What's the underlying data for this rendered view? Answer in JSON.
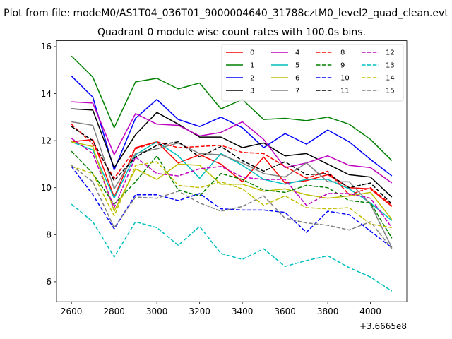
{
  "chart_data": {
    "type": "line",
    "suptitle": "Plot from file: modeM0/AS1T04_036T01_9000004640_31788cztM0_level2_quad_clean.evt",
    "title": "Quadrant 0 module wise count rates with 100.0s bins.",
    "xlabel": "",
    "ylabel": "",
    "x_offset_label": "+3.6665e8",
    "x": [
      2600,
      2700,
      2800,
      2900,
      3000,
      3100,
      3200,
      3300,
      3400,
      3500,
      3600,
      3700,
      3800,
      3900,
      4000,
      4100
    ],
    "xlim": [
      2530,
      4170
    ],
    "ylim": [
      5.15,
      16.25
    ],
    "xticks": [
      2600,
      2800,
      3000,
      3200,
      3400,
      3600,
      3800,
      4000
    ],
    "yticks": [
      6,
      8,
      10,
      12,
      14,
      16
    ],
    "legend_position": "top-right",
    "series": [
      {
        "name": "0",
        "color": "#ff0000",
        "dash": "solid",
        "values": [
          11.95,
          12.05,
          9.6,
          11.7,
          11.95,
          11.05,
          11.4,
          11.0,
          10.25,
          11.3,
          10.2,
          10.3,
          10.55,
          10.0,
          9.95,
          9.2
        ]
      },
      {
        "name": "1",
        "color": "#008000",
        "dash": "solid",
        "values": [
          15.6,
          14.7,
          12.55,
          14.5,
          14.65,
          14.2,
          14.45,
          13.35,
          13.75,
          12.9,
          12.95,
          12.85,
          13.0,
          12.7,
          12.05,
          11.15
        ]
      },
      {
        "name": "2",
        "color": "#0000ff",
        "dash": "solid",
        "values": [
          14.75,
          13.85,
          10.75,
          12.95,
          13.75,
          12.9,
          12.6,
          13.0,
          12.55,
          11.7,
          12.3,
          11.85,
          12.45,
          11.95,
          11.2,
          10.5
        ]
      },
      {
        "name": "3",
        "color": "#000000",
        "dash": "solid",
        "values": [
          13.35,
          13.3,
          10.85,
          12.25,
          13.2,
          12.7,
          12.15,
          12.15,
          11.7,
          11.9,
          11.35,
          11.45,
          11.0,
          10.55,
          10.45,
          9.6
        ]
      },
      {
        "name": "4",
        "color": "#bf00bf",
        "dash": "solid",
        "values": [
          13.65,
          13.6,
          11.4,
          13.15,
          12.7,
          12.65,
          12.2,
          12.35,
          12.8,
          12.05,
          10.85,
          11.05,
          11.35,
          10.95,
          10.85,
          10.2
        ]
      },
      {
        "name": "5",
        "color": "#00bfbf",
        "dash": "solid",
        "values": [
          11.95,
          11.6,
          9.55,
          11.4,
          11.95,
          11.35,
          10.4,
          11.45,
          10.95,
          10.35,
          10.15,
          10.35,
          10.35,
          9.95,
          9.35,
          8.6
        ]
      },
      {
        "name": "6",
        "color": "#bfbf00",
        "dash": "solid",
        "values": [
          11.95,
          11.75,
          9.0,
          10.8,
          10.35,
          11.0,
          10.95,
          10.15,
          10.15,
          9.85,
          9.95,
          9.7,
          9.55,
          9.65,
          9.8,
          8.65
        ]
      },
      {
        "name": "7",
        "color": "#808080",
        "dash": "solid",
        "values": [
          12.8,
          12.65,
          9.95,
          11.45,
          11.65,
          11.9,
          11.45,
          11.4,
          11.05,
          10.6,
          10.45,
          11.05,
          10.25,
          10.25,
          9.3,
          7.45
        ]
      },
      {
        "name": "8",
        "color": "#ff0000",
        "dash": "dashed",
        "values": [
          12.7,
          11.85,
          10.4,
          11.65,
          11.95,
          11.7,
          11.75,
          11.8,
          11.5,
          11.45,
          10.9,
          10.4,
          10.7,
          9.7,
          10.0,
          9.25
        ]
      },
      {
        "name": "9",
        "color": "#008000",
        "dash": "dashed",
        "values": [
          11.55,
          10.6,
          9.3,
          10.25,
          11.35,
          9.9,
          9.65,
          10.6,
          10.35,
          9.9,
          9.8,
          10.1,
          10.0,
          9.45,
          9.35,
          7.85
        ]
      },
      {
        "name": "10",
        "color": "#0000ff",
        "dash": "dashed",
        "values": [
          10.9,
          9.7,
          8.25,
          9.7,
          9.7,
          9.45,
          9.75,
          9.1,
          9.05,
          9.05,
          8.95,
          8.1,
          9.0,
          8.85,
          8.15,
          7.45
        ]
      },
      {
        "name": "11",
        "color": "#000000",
        "dash": "dashed",
        "values": [
          12.6,
          12.0,
          10.3,
          11.3,
          11.8,
          11.95,
          11.3,
          11.75,
          11.15,
          10.7,
          11.1,
          10.55,
          10.6,
          10.0,
          10.2,
          9.3
        ]
      },
      {
        "name": "12",
        "color": "#bf00bf",
        "dash": "dashed",
        "values": [
          12.1,
          11.45,
          9.15,
          11.3,
          10.6,
          10.5,
          10.8,
          10.9,
          10.45,
          10.35,
          10.35,
          9.25,
          9.75,
          9.75,
          9.55,
          8.3
        ]
      },
      {
        "name": "13",
        "color": "#00bfbf",
        "dash": "dashed",
        "values": [
          9.3,
          8.55,
          7.05,
          8.55,
          8.3,
          7.55,
          8.35,
          7.2,
          6.95,
          7.4,
          6.65,
          6.9,
          7.1,
          6.6,
          6.2,
          5.6
        ]
      },
      {
        "name": "14",
        "color": "#bfbf00",
        "dash": "dashed",
        "values": [
          10.9,
          10.6,
          8.8,
          10.95,
          11.1,
          10.1,
          10.0,
          10.25,
          9.95,
          9.25,
          9.65,
          9.15,
          9.1,
          9.15,
          8.45,
          8.3
        ]
      },
      {
        "name": "15",
        "color": "#808080",
        "dash": "dashed",
        "values": [
          10.95,
          10.25,
          8.3,
          9.6,
          9.55,
          9.85,
          9.35,
          9.0,
          9.2,
          9.65,
          8.7,
          8.5,
          8.4,
          8.2,
          8.55,
          7.4
        ]
      }
    ]
  }
}
